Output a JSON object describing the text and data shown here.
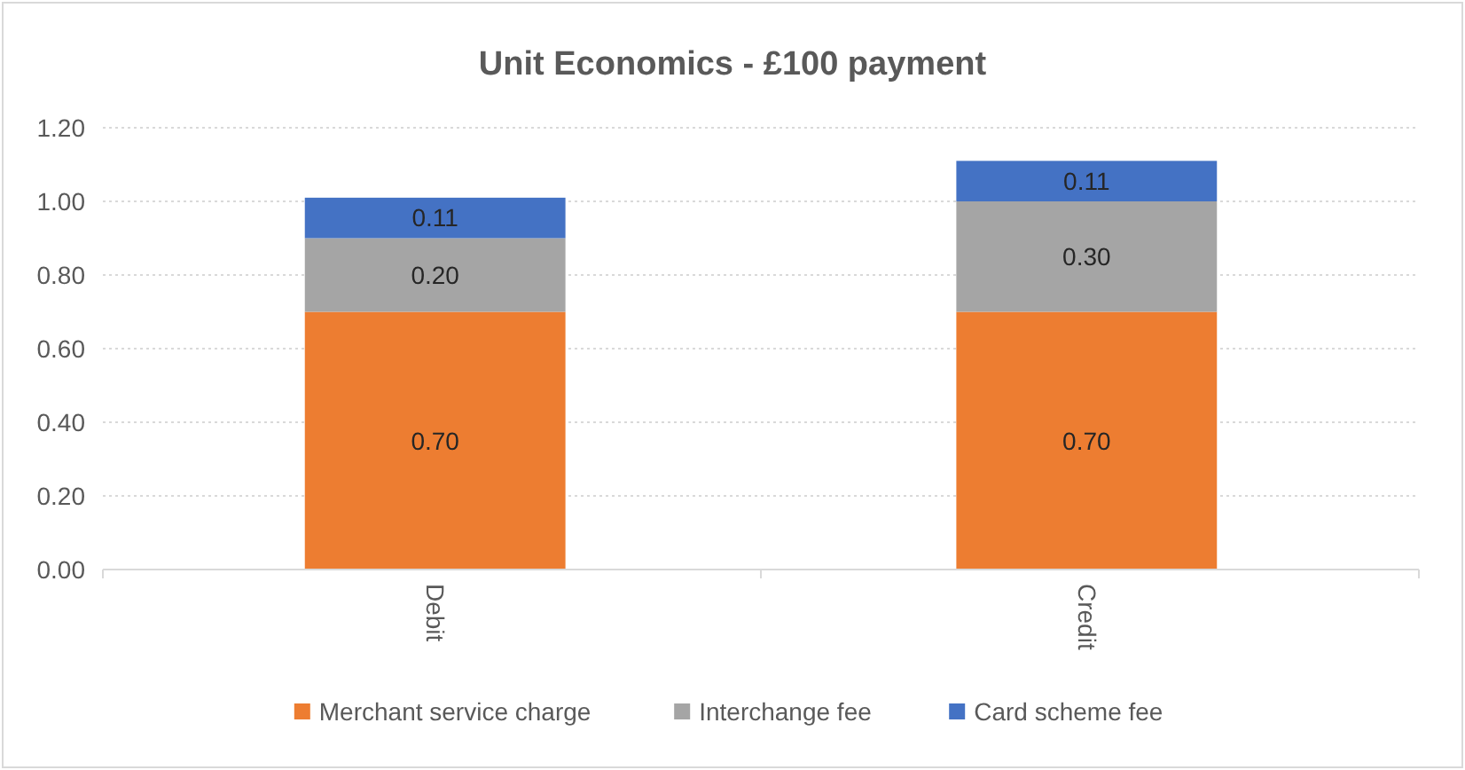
{
  "chart_data": {
    "type": "bar",
    "title": "Unit Economics - £100 payment",
    "categories": [
      "Debit",
      "Credit"
    ],
    "stacked": true,
    "series": [
      {
        "name": "Merchant service charge",
        "color": "#ed7d31",
        "values": [
          0.7,
          0.7
        ],
        "value_labels": [
          "0.70",
          "0.70"
        ]
      },
      {
        "name": "Interchange fee",
        "color": "#a5a5a5",
        "values": [
          0.2,
          0.3
        ],
        "value_labels": [
          "0.20",
          "0.30"
        ]
      },
      {
        "name": "Card scheme fee",
        "color": "#4472c4",
        "values": [
          0.11,
          0.11
        ],
        "value_labels": [
          "0.11",
          "0.11"
        ]
      }
    ],
    "ylim": [
      0,
      1.2
    ],
    "yticks": [
      {
        "value": 0,
        "label": "0.00"
      },
      {
        "value": 0.2,
        "label": "0.20"
      },
      {
        "value": 0.4,
        "label": "0.40"
      },
      {
        "value": 0.6,
        "label": "0.60"
      },
      {
        "value": 0.8,
        "label": "0.80"
      },
      {
        "value": 1,
        "label": "1.00"
      },
      {
        "value": 1.2,
        "label": "1.20"
      }
    ],
    "grid": "y",
    "legend": "bottom"
  }
}
